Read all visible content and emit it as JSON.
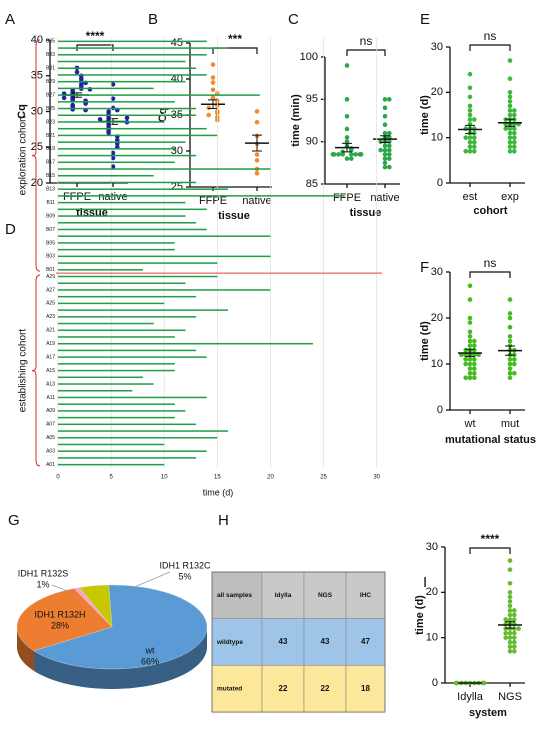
{
  "chart_data": [
    {
      "type": "dotplot",
      "panel": "A",
      "ylabel": "Cq",
      "xlabel": "tissue",
      "categories": [
        "FFPE",
        "native"
      ],
      "color": "#1f23a8",
      "significance": "****",
      "ylim": [
        20,
        40
      ],
      "yticks": [
        20,
        25,
        30,
        35,
        40
      ],
      "groups": [
        {
          "values": [
            36.1,
            35.5,
            35.0,
            34.6,
            34.2,
            33.8,
            33.5,
            33.2,
            33.0,
            32.8,
            32.6,
            32.4,
            32.2,
            32.0,
            31.8,
            31.6,
            31.5,
            31.3,
            31.1,
            30.9,
            30.7,
            30.5,
            30.3,
            30.2,
            32.5,
            33.1,
            31.9,
            34.0
          ],
          "mean": 32.3,
          "error": 0.3
        },
        {
          "values": [
            33.8,
            31.8,
            30.5,
            30.2,
            30.0,
            29.8,
            29.6,
            29.4,
            29.2,
            29.0,
            28.8,
            28.6,
            28.4,
            28.2,
            28.0,
            27.8,
            27.6,
            27.4,
            27.2,
            27.0,
            26.5,
            26.0,
            25.5,
            25.0,
            24.2,
            23.5,
            22.3,
            28.9,
            29.1,
            28.5
          ],
          "mean": 28.6,
          "error": 0.4
        }
      ]
    },
    {
      "type": "dotplot",
      "panel": "B",
      "ylabel": "Cq",
      "xlabel": "tissue",
      "categories": [
        "FFPE",
        "native"
      ],
      "color": "#f28a2e",
      "significance": "***",
      "ylim": [
        25,
        45
      ],
      "yticks": [
        25,
        30,
        35,
        40,
        45
      ],
      "groups": [
        {
          "values": [
            42,
            40.2,
            39.5,
            38.5,
            38,
            37.4,
            37,
            36.5,
            36.3,
            36,
            35.5,
            35.3,
            35,
            34.7,
            34.3
          ],
          "mean": 36.5,
          "error": 0.6
        },
        {
          "values": [
            35.5,
            34,
            32.1,
            31,
            29.5,
            28.7,
            27.5,
            26.9
          ],
          "mean": 31.1,
          "error": 1.1
        }
      ]
    },
    {
      "type": "dotplot",
      "panel": "C",
      "ylabel": "time (min)",
      "xlabel": "tissue",
      "categories": [
        "FFPE",
        "native"
      ],
      "color": "#2aa84a",
      "significance": "ns",
      "ylim": [
        85,
        100
      ],
      "yticks": [
        85,
        90,
        95,
        100
      ],
      "groups": [
        {
          "values": [
            99,
            95,
            93,
            91.5,
            90.5,
            90,
            89.5,
            89.2,
            89,
            88.8,
            88.5,
            88.5,
            88.5,
            88.5,
            88.5,
            88.5,
            88.5,
            88.5,
            88.5,
            88.5,
            88,
            88
          ],
          "mean": 89.3,
          "error": 0.5
        },
        {
          "values": [
            95,
            95,
            94,
            93,
            92,
            91,
            91,
            90.5,
            90.5,
            90,
            90,
            90,
            89.5,
            89.5,
            89,
            89,
            89,
            88.5,
            88.5,
            88,
            88,
            87.5,
            87,
            87
          ],
          "mean": 90.3,
          "error": 0.4
        }
      ]
    },
    {
      "type": "hbar",
      "panel": "D",
      "xlabel": "time (d)",
      "color": "#1f9e45",
      "groups": [
        "exploration cohort",
        "establishing cohort"
      ],
      "xlim": [
        0,
        30.5
      ],
      "xticks": [
        0,
        5,
        10,
        15,
        20,
        25,
        30
      ],
      "categories": [
        "B35",
        null,
        "B33",
        null,
        "B31",
        null,
        "B29",
        null,
        "B27",
        null,
        "B25",
        null,
        "B23",
        null,
        "B21",
        null,
        "B19",
        null,
        "B17",
        null,
        "B15",
        null,
        "B13",
        null,
        "B11",
        null,
        "B09",
        null,
        "B07",
        null,
        "B05",
        null,
        "B03",
        null,
        "B01",
        "A29",
        null,
        "A27",
        null,
        "A25",
        null,
        "A23",
        null,
        "A21",
        null,
        "A19",
        null,
        "A17",
        null,
        "A15",
        null,
        "A13",
        null,
        "A11",
        null,
        "A09",
        null,
        "A07",
        null,
        "A05",
        null,
        "A03",
        null,
        "A01"
      ],
      "values": [
        14,
        16,
        14,
        12,
        13,
        14,
        12,
        9,
        19,
        11,
        13,
        13,
        10,
        14,
        15,
        12,
        11,
        13,
        11,
        20,
        9,
        13,
        16,
        27,
        12,
        14,
        12,
        13,
        14,
        20,
        11,
        11,
        20,
        15,
        8,
        15,
        12,
        20,
        13,
        10,
        16,
        13,
        9,
        12,
        11,
        24,
        13,
        14,
        11,
        11,
        8,
        9,
        7,
        14,
        11,
        12,
        11,
        13,
        16,
        15,
        10,
        14,
        13,
        10
      ]
    },
    {
      "type": "dotplot",
      "panel": "E",
      "ylabel": "time (d)",
      "xlabel": "cohort",
      "categories": [
        "est",
        "exp"
      ],
      "color": "#3cb83c",
      "significance": "ns",
      "ylim": [
        0,
        30
      ],
      "yticks": [
        0,
        10,
        20,
        30
      ],
      "groups": [
        {
          "values": [
            24,
            21,
            19,
            17,
            16,
            15,
            14,
            14,
            13,
            12,
            12,
            12,
            11,
            11,
            10,
            10,
            10,
            9,
            9,
            8,
            8,
            7,
            7,
            7
          ],
          "mean": 11.8,
          "error": 0.9
        },
        {
          "values": [
            27,
            23,
            20,
            19,
            18,
            17,
            16,
            16,
            15,
            15,
            14,
            14,
            14,
            13,
            13,
            13,
            13,
            12,
            12,
            12,
            11,
            11,
            10,
            10,
            9,
            9,
            8,
            8,
            7,
            7
          ],
          "mean": 13.3,
          "error": 0.8
        }
      ]
    },
    {
      "type": "dotplot",
      "panel": "F",
      "ylabel": "time (d)",
      "xlabel": "mutational status",
      "categories": [
        "wt",
        "mut"
      ],
      "color": "#44bb22",
      "significance": "ns",
      "ylim": [
        0,
        30
      ],
      "yticks": [
        0,
        10,
        20,
        30
      ],
      "groups": [
        {
          "values": [
            27,
            24,
            20,
            19,
            17,
            16,
            15,
            15,
            14,
            14,
            13,
            13,
            13,
            12,
            12,
            12,
            12,
            12,
            11,
            11,
            11,
            10,
            10,
            10,
            9,
            9,
            8,
            8,
            7,
            7,
            7
          ],
          "mean": 12.4,
          "error": 0.8
        },
        {
          "values": [
            24,
            21,
            20,
            18,
            16,
            15,
            14,
            13,
            13,
            12,
            12,
            11,
            11,
            10,
            10,
            9,
            8,
            8,
            7
          ],
          "mean": 12.9,
          "error": 1.0
        }
      ]
    },
    {
      "type": "pie",
      "panel": "G",
      "categories": [
        "wt",
        "IDH1 R132H",
        "IDH1 R132S",
        "IDH1 R132C"
      ],
      "values": [
        66,
        28,
        1,
        5
      ],
      "value_labels": [
        "66%",
        "28%",
        "1%",
        "5%"
      ],
      "colors": [
        "#5b9bd5",
        "#ed7d31",
        "#f4a6c8",
        "#c8c800"
      ]
    },
    {
      "type": "table",
      "panel": "H",
      "header": [
        "all samples",
        "Idylla",
        "NGS",
        "IHC"
      ],
      "rows": [
        [
          "wildtype",
          43,
          43,
          47
        ],
        [
          "mutated",
          22,
          22,
          18
        ]
      ]
    },
    {
      "type": "dotplot",
      "panel": "I",
      "ylabel": "time (d)",
      "xlabel": "system",
      "categories": [
        "Idylla",
        "NGS"
      ],
      "color": "#66bb33",
      "significance": "****",
      "ylim": [
        0,
        30
      ],
      "yticks": [
        0,
        10,
        20,
        30
      ],
      "groups": [
        {
          "values": [
            0,
            0,
            0,
            0,
            0,
            0,
            0,
            0,
            0,
            0
          ],
          "mean": 0,
          "error": 0
        },
        {
          "values": [
            27,
            25,
            22,
            20,
            19,
            18,
            17,
            16,
            16,
            15,
            15,
            14,
            14,
            14,
            13,
            13,
            13,
            12,
            12,
            12,
            12,
            11,
            11,
            11,
            10,
            10,
            10,
            9,
            9,
            8,
            8,
            7,
            7
          ],
          "mean": 12.8,
          "error": 0.7
        }
      ]
    }
  ]
}
